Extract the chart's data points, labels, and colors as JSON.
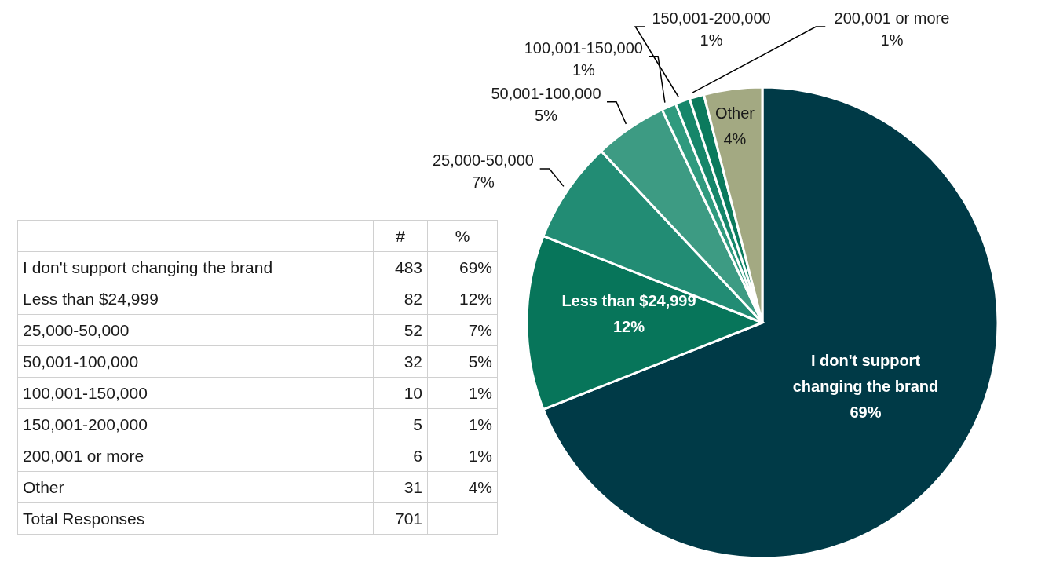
{
  "chart_data": [
    {
      "type": "pie",
      "categories": [
        "I don't support changing the brand",
        "Less than $24,999",
        "25,000-50,000",
        "50,001-100,000",
        "100,001-150,000",
        "150,001-200,000",
        "200,001 or more",
        "Other"
      ],
      "values": [
        69,
        12,
        7,
        5,
        1,
        1,
        1,
        4
      ],
      "value_labels": [
        "69%",
        "12%",
        "7%",
        "5%",
        "1%",
        "1%",
        "1%",
        "4%"
      ],
      "colors": [
        "#003a47",
        "#07755a",
        "#228c74",
        "#3d9b83",
        "#2f9a7e",
        "#16866a",
        "#0b7a5d",
        "#a3a982"
      ]
    },
    {
      "type": "other",
      "categories": [
        "I don't support changing the brand",
        "Less than $24,999",
        "25,000-50,000",
        "50,001-100,000",
        "100,001-150,000",
        "150,001-200,000",
        "200,001 or more",
        "Other",
        "Total Responses"
      ],
      "data_labels": true,
      "series": [
        {
          "name": "#",
          "values": [
            483,
            82,
            52,
            32,
            10,
            5,
            6,
            31,
            701
          ]
        },
        {
          "name": "%",
          "values": [
            69,
            12,
            7,
            5,
            1,
            1,
            1,
            4,
            null
          ],
          "value_labels": [
            "69%",
            "12%",
            "7%",
            "5%",
            "1%",
            "1%",
            "1%",
            "4%",
            null
          ]
        }
      ]
    }
  ]
}
